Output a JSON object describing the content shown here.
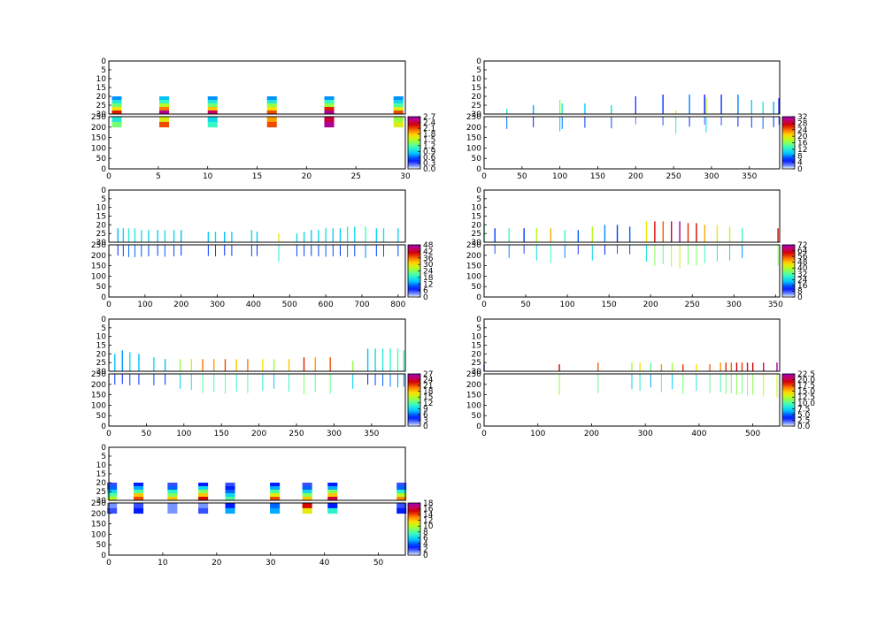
{
  "chart_data": [
    {
      "type": "heatmap",
      "xlim": [
        0,
        30
      ],
      "xticks": [
        "0",
        "5",
        "10",
        "15",
        "20",
        "25",
        "30"
      ],
      "top_ylim": [
        0,
        30
      ],
      "top_yticks": [
        "0",
        "5",
        "10",
        "15",
        "20",
        "25",
        "30"
      ],
      "bottom_ylim": [
        0,
        250
      ],
      "bottom_yticks": [
        "0",
        "50",
        "100",
        "150",
        "200",
        "250"
      ],
      "colorbar": {
        "range": [
          0,
          2.7
        ],
        "ticks": [
          "0.0",
          "0.3",
          "0.6",
          "0.9",
          "1.2",
          "1.5",
          "1.8",
          "2.1",
          "2.4",
          "2.7"
        ]
      },
      "style": "blocks",
      "columns": [
        {
          "x": 0.8,
          "top_vals": [
            0.7,
            1.0,
            1.3,
            1.7,
            2.2
          ],
          "bottom_vals": [
            1.0,
            1.3
          ]
        },
        {
          "x": 5.6,
          "top_vals": [
            0.8,
            1.1,
            1.5,
            2.0,
            2.6
          ],
          "bottom_vals": [
            1.6,
            2.1
          ]
        },
        {
          "x": 10.5,
          "top_vals": [
            0.7,
            1.0,
            1.3,
            1.8,
            2.5
          ],
          "bottom_vals": [
            0.9,
            1.1
          ]
        },
        {
          "x": 16.5,
          "top_vals": [
            0.7,
            1.0,
            1.4,
            1.7,
            2.1
          ],
          "bottom_vals": [
            1.9,
            2.1
          ]
        },
        {
          "x": 22.3,
          "top_vals": [
            0.7,
            1.1,
            1.4,
            2.2,
            2.6
          ],
          "bottom_vals": [
            2.4,
            2.6
          ]
        },
        {
          "x": 29.3,
          "top_vals": [
            0.7,
            0.9,
            1.2,
            1.6,
            2.1
          ],
          "bottom_vals": [
            1.4,
            1.6
          ]
        }
      ]
    },
    {
      "type": "heatmap",
      "xlim": [
        0,
        390
      ],
      "xticks": [
        "0",
        "50",
        "100",
        "150",
        "200",
        "250",
        "300",
        "350"
      ],
      "top_ylim": [
        0,
        30
      ],
      "top_yticks": [
        "0",
        "5",
        "10",
        "15",
        "20",
        "25",
        "30"
      ],
      "bottom_ylim": [
        0,
        250
      ],
      "bottom_yticks": [
        "0",
        "50",
        "100",
        "150",
        "200",
        "250"
      ],
      "colorbar": {
        "range": [
          0,
          32
        ],
        "ticks": [
          "0",
          "4",
          "8",
          "12",
          "16",
          "20",
          "24",
          "28",
          "32"
        ]
      },
      "style": "sticks",
      "columns": [
        {
          "x": 30,
          "h": 3,
          "v": 12
        },
        {
          "x": 65,
          "h": 5,
          "v": 9
        },
        {
          "x": 100,
          "h": 8,
          "v": 16
        },
        {
          "x": 103,
          "h": 6,
          "v": 12
        },
        {
          "x": 133,
          "h": 6,
          "v": 10
        },
        {
          "x": 168,
          "h": 5,
          "v": 11
        },
        {
          "x": 200,
          "h": 10,
          "v": 4
        },
        {
          "x": 236,
          "h": 11,
          "v": 6
        },
        {
          "x": 253,
          "h": 2,
          "v": 20
        },
        {
          "x": 271,
          "h": 11,
          "v": 8
        },
        {
          "x": 291,
          "h": 11,
          "v": 5
        },
        {
          "x": 293,
          "h": 9,
          "v": 18
        },
        {
          "x": 313,
          "h": 11,
          "v": 6
        },
        {
          "x": 335,
          "h": 11,
          "v": 8
        },
        {
          "x": 353,
          "h": 8,
          "v": 10
        },
        {
          "x": 368,
          "h": 7,
          "v": 12
        },
        {
          "x": 382,
          "h": 7,
          "v": 9
        },
        {
          "x": 389,
          "h": 9,
          "v": 5
        }
      ]
    },
    {
      "type": "heatmap",
      "xlim": [
        0,
        820
      ],
      "xticks": [
        "0",
        "100",
        "200",
        "300",
        "400",
        "500",
        "600",
        "700",
        "800"
      ],
      "top_ylim": [
        0,
        30
      ],
      "top_yticks": [
        "0",
        "5",
        "10",
        "15",
        "20",
        "25",
        "30"
      ],
      "bottom_ylim": [
        0,
        250
      ],
      "bottom_yticks": [
        "0",
        "50",
        "100",
        "150",
        "200",
        "250"
      ],
      "colorbar": {
        "range": [
          0,
          48
        ],
        "ticks": [
          "0",
          "6",
          "12",
          "18",
          "24",
          "30",
          "36",
          "42",
          "48"
        ]
      },
      "style": "sticks",
      "columns": [
        {
          "x": 25,
          "h": 8,
          "v": 14
        },
        {
          "x": 40,
          "h": 8,
          "v": 16
        },
        {
          "x": 55,
          "h": 8,
          "v": 18
        },
        {
          "x": 72,
          "h": 8,
          "v": 18
        },
        {
          "x": 90,
          "h": 7,
          "v": 17
        },
        {
          "x": 110,
          "h": 7,
          "v": 16
        },
        {
          "x": 135,
          "h": 7,
          "v": 15
        },
        {
          "x": 155,
          "h": 7,
          "v": 17
        },
        {
          "x": 180,
          "h": 7,
          "v": 16
        },
        {
          "x": 200,
          "h": 7,
          "v": 14
        },
        {
          "x": 275,
          "h": 6,
          "v": 15
        },
        {
          "x": 295,
          "h": 6,
          "v": 16
        },
        {
          "x": 320,
          "h": 6,
          "v": 14
        },
        {
          "x": 340,
          "h": 6,
          "v": 15
        },
        {
          "x": 395,
          "h": 7,
          "v": 16
        },
        {
          "x": 410,
          "h": 6,
          "v": 15
        },
        {
          "x": 470,
          "h": 5,
          "v": 30
        },
        {
          "x": 520,
          "h": 5,
          "v": 16
        },
        {
          "x": 540,
          "h": 6,
          "v": 16
        },
        {
          "x": 560,
          "h": 7,
          "v": 15
        },
        {
          "x": 580,
          "h": 7,
          "v": 16
        },
        {
          "x": 600,
          "h": 8,
          "v": 17
        },
        {
          "x": 620,
          "h": 8,
          "v": 16
        },
        {
          "x": 640,
          "h": 8,
          "v": 15
        },
        {
          "x": 660,
          "h": 9,
          "v": 18
        },
        {
          "x": 680,
          "h": 9,
          "v": 16
        },
        {
          "x": 710,
          "h": 9,
          "v": 20
        },
        {
          "x": 740,
          "h": 8,
          "v": 16
        },
        {
          "x": 760,
          "h": 8,
          "v": 17
        },
        {
          "x": 800,
          "h": 8,
          "v": 16
        }
      ]
    },
    {
      "type": "heatmap",
      "xlim": [
        0,
        355
      ],
      "xticks": [
        "0",
        "50",
        "100",
        "150",
        "200",
        "250",
        "300",
        "350"
      ],
      "top_ylim": [
        0,
        30
      ],
      "top_yticks": [
        "0",
        "5",
        "10",
        "15",
        "20",
        "25",
        "30"
      ],
      "bottom_ylim": [
        0,
        250
      ],
      "bottom_yticks": [
        "0",
        "50",
        "100",
        "150",
        "200",
        "250"
      ],
      "colorbar": {
        "range": [
          0,
          72
        ],
        "ticks": [
          "0",
          "8",
          "16",
          "24",
          "32",
          "40",
          "48",
          "56",
          "64",
          "72"
        ]
      },
      "style": "sticks",
      "columns": [
        {
          "x": 0,
          "h": 10,
          "v": 30
        },
        {
          "x": 13,
          "h": 8,
          "v": 14
        },
        {
          "x": 30,
          "h": 8,
          "v": 30
        },
        {
          "x": 48,
          "h": 8,
          "v": 14
        },
        {
          "x": 63,
          "h": 8,
          "v": 40
        },
        {
          "x": 80,
          "h": 8,
          "v": 50
        },
        {
          "x": 97,
          "h": 7,
          "v": 30
        },
        {
          "x": 113,
          "h": 7,
          "v": 16
        },
        {
          "x": 130,
          "h": 9,
          "v": 40
        },
        {
          "x": 145,
          "h": 10,
          "v": 18
        },
        {
          "x": 160,
          "h": 10,
          "v": 14
        },
        {
          "x": 175,
          "h": 9,
          "v": 16
        },
        {
          "x": 195,
          "h": 12,
          "v": 45
        },
        {
          "x": 205,
          "h": 12,
          "v": 60
        },
        {
          "x": 215,
          "h": 12,
          "v": 55
        },
        {
          "x": 225,
          "h": 12,
          "v": 64
        },
        {
          "x": 235,
          "h": 12,
          "v": 70
        },
        {
          "x": 245,
          "h": 11,
          "v": 58
        },
        {
          "x": 255,
          "h": 11,
          "v": 60
        },
        {
          "x": 265,
          "h": 10,
          "v": 50
        },
        {
          "x": 280,
          "h": 10,
          "v": 44
        },
        {
          "x": 295,
          "h": 9,
          "v": 40
        },
        {
          "x": 310,
          "h": 8,
          "v": 30
        },
        {
          "x": 353,
          "h": 8,
          "v": 60
        }
      ]
    },
    {
      "type": "heatmap",
      "xlim": [
        0,
        395
      ],
      "xticks": [
        "0",
        "50",
        "100",
        "150",
        "200",
        "250",
        "300",
        "350"
      ],
      "top_ylim": [
        0,
        30
      ],
      "top_yticks": [
        "0",
        "5",
        "10",
        "15",
        "20",
        "25",
        "30"
      ],
      "bottom_ylim": [
        0,
        250
      ],
      "bottom_yticks": [
        "0",
        "50",
        "100",
        "150",
        "200",
        "250"
      ],
      "colorbar": {
        "range": [
          0,
          27
        ],
        "ticks": [
          "0",
          "3",
          "6",
          "9",
          "12",
          "15",
          "18",
          "21",
          "24",
          "27"
        ]
      },
      "style": "sticks",
      "columns": [
        {
          "x": 8,
          "h": 10,
          "v": 8
        },
        {
          "x": 18,
          "h": 12,
          "v": 7
        },
        {
          "x": 28,
          "h": 11,
          "v": 9
        },
        {
          "x": 40,
          "h": 10,
          "v": 8
        },
        {
          "x": 60,
          "h": 8,
          "v": 9
        },
        {
          "x": 75,
          "h": 7,
          "v": 8
        },
        {
          "x": 95,
          "h": 7,
          "v": 14
        },
        {
          "x": 110,
          "h": 7,
          "v": 16
        },
        {
          "x": 125,
          "h": 7,
          "v": 20
        },
        {
          "x": 140,
          "h": 7,
          "v": 19
        },
        {
          "x": 155,
          "h": 7,
          "v": 21
        },
        {
          "x": 170,
          "h": 7,
          "v": 18
        },
        {
          "x": 185,
          "h": 7,
          "v": 20
        },
        {
          "x": 205,
          "h": 7,
          "v": 17
        },
        {
          "x": 220,
          "h": 7,
          "v": 14
        },
        {
          "x": 240,
          "h": 7,
          "v": 18
        },
        {
          "x": 260,
          "h": 8,
          "v": 22
        },
        {
          "x": 275,
          "h": 8,
          "v": 19
        },
        {
          "x": 295,
          "h": 8,
          "v": 21
        },
        {
          "x": 325,
          "h": 6,
          "v": 14
        },
        {
          "x": 345,
          "h": 13,
          "v": 8
        },
        {
          "x": 355,
          "h": 13,
          "v": 9
        },
        {
          "x": 365,
          "h": 13,
          "v": 10
        },
        {
          "x": 375,
          "h": 13,
          "v": 11
        },
        {
          "x": 385,
          "h": 13,
          "v": 12
        },
        {
          "x": 393,
          "h": 12,
          "v": 11
        }
      ]
    },
    {
      "type": "heatmap",
      "xlim": [
        0,
        550
      ],
      "xticks": [
        "0",
        "100",
        "200",
        "300",
        "400",
        "500"
      ],
      "top_ylim": [
        0,
        30
      ],
      "top_yticks": [
        "0",
        "5",
        "10",
        "15",
        "20",
        "25",
        "30"
      ],
      "bottom_ylim": [
        0,
        250
      ],
      "bottom_yticks": [
        "0",
        "50",
        "100",
        "150",
        "200",
        "250"
      ],
      "colorbar": {
        "range": [
          0,
          22.5
        ],
        "ticks": [
          "0.0",
          "2.5",
          "5.0",
          "7.5",
          "10.0",
          "12.5",
          "15.0",
          "17.5",
          "20.0",
          "22.5"
        ]
      },
      "style": "sticks",
      "columns": [
        {
          "x": 0,
          "h": 4,
          "v": 3
        },
        {
          "x": 140,
          "h": 4,
          "v": 19
        },
        {
          "x": 212,
          "h": 5,
          "v": 17
        },
        {
          "x": 275,
          "h": 5,
          "v": 12
        },
        {
          "x": 290,
          "h": 5,
          "v": 14
        },
        {
          "x": 310,
          "h": 5,
          "v": 10
        },
        {
          "x": 330,
          "h": 4,
          "v": 16
        },
        {
          "x": 350,
          "h": 5,
          "v": 12
        },
        {
          "x": 370,
          "h": 4,
          "v": 18
        },
        {
          "x": 395,
          "h": 4,
          "v": 14
        },
        {
          "x": 420,
          "h": 4,
          "v": 17
        },
        {
          "x": 440,
          "h": 5,
          "v": 16
        },
        {
          "x": 450,
          "h": 5,
          "v": 18
        },
        {
          "x": 460,
          "h": 5,
          "v": 17
        },
        {
          "x": 470,
          "h": 5,
          "v": 19
        },
        {
          "x": 480,
          "h": 5,
          "v": 18
        },
        {
          "x": 490,
          "h": 5,
          "v": 20
        },
        {
          "x": 500,
          "h": 5,
          "v": 19
        },
        {
          "x": 520,
          "h": 5,
          "v": 21
        },
        {
          "x": 545,
          "h": 5,
          "v": 22
        }
      ]
    },
    {
      "type": "heatmap",
      "xlim": [
        0,
        55
      ],
      "xticks": [
        "0",
        "10",
        "20",
        "30",
        "40",
        "50"
      ],
      "top_ylim": [
        0,
        30
      ],
      "top_yticks": [
        "0",
        "5",
        "10",
        "15",
        "20",
        "25",
        "30"
      ],
      "bottom_ylim": [
        0,
        250
      ],
      "bottom_yticks": [
        "0",
        "50",
        "100",
        "150",
        "200",
        "250"
      ],
      "colorbar": {
        "range": [
          0,
          18
        ],
        "ticks": [
          "0",
          "2",
          "4",
          "6",
          "8",
          "10",
          "12",
          "14",
          "16",
          "18"
        ]
      },
      "style": "blocks",
      "columns": [
        {
          "x": 0.6,
          "top_vals": [
            2,
            4,
            6,
            8,
            10
          ],
          "bottom_vals": [
            1,
            2
          ]
        },
        {
          "x": 5.5,
          "top_vals": [
            3,
            5,
            8,
            12,
            14
          ],
          "bottom_vals": [
            2,
            3
          ]
        },
        {
          "x": 11.8,
          "top_vals": [
            2,
            4,
            7,
            9,
            12
          ],
          "bottom_vals": [
            1,
            1
          ]
        },
        {
          "x": 17.5,
          "top_vals": [
            3,
            6,
            9,
            12,
            15
          ],
          "bottom_vals": [
            1,
            2
          ]
        },
        {
          "x": 22.5,
          "top_vals": [
            2,
            3,
            4,
            6,
            8
          ],
          "bottom_vals": [
            3,
            5
          ]
        },
        {
          "x": 30.8,
          "top_vals": [
            3,
            5,
            8,
            11,
            14
          ],
          "bottom_vals": [
            4,
            5
          ]
        },
        {
          "x": 36.8,
          "top_vals": [
            2,
            4,
            6,
            9,
            12
          ],
          "bottom_vals": [
            15,
            11
          ]
        },
        {
          "x": 41.5,
          "top_vals": [
            3,
            5,
            9,
            12,
            16
          ],
          "bottom_vals": [
            3,
            7
          ]
        },
        {
          "x": 54.3,
          "top_vals": [
            2,
            4,
            7,
            10,
            13
          ],
          "bottom_vals": [
            2,
            3
          ]
        }
      ]
    }
  ]
}
